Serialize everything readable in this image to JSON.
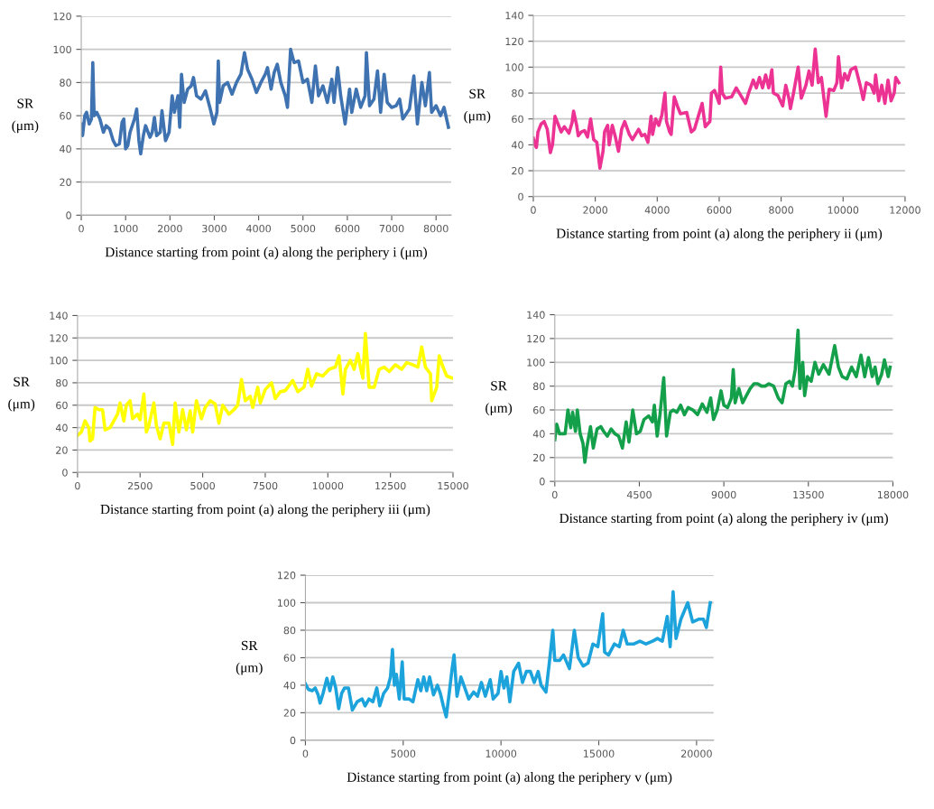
{
  "chart_data": [
    {
      "type": "line",
      "xlabel": "Distance starting from point (a) along the periphery i (μm)",
      "ylabel": "SR\n(μm)",
      "xlim": [
        0,
        8340
      ],
      "xticks": [
        0,
        1000,
        2000,
        3000,
        4000,
        5000,
        6000,
        7000,
        8000
      ],
      "ylim": [
        0,
        120
      ],
      "yticks": [
        0,
        20,
        40,
        60,
        80,
        100,
        120
      ],
      "grid": "y",
      "legend": false,
      "marker": "none",
      "line_style": "solid",
      "series": [
        {
          "color": "#3f72b0",
          "x": [
            0,
            30,
            80,
            120,
            180,
            230,
            260,
            290,
            350,
            420,
            500,
            560,
            640,
            720,
            780,
            860,
            920,
            960,
            1000,
            1050,
            1100,
            1200,
            1250,
            1300,
            1340,
            1400,
            1450,
            1550,
            1600,
            1650,
            1700,
            1780,
            1820,
            1900,
            1980,
            2050,
            2100,
            2180,
            2220,
            2260,
            2320,
            2400,
            2480,
            2530,
            2600,
            2700,
            2800,
            2900,
            2990,
            3060,
            3090,
            3120,
            3200,
            3300,
            3400,
            3500,
            3600,
            3680,
            3750,
            3850,
            3950,
            4050,
            4150,
            4200,
            4280,
            4350,
            4420,
            4500,
            4600,
            4650,
            4720,
            4800,
            4900,
            5000,
            5100,
            5200,
            5280,
            5350,
            5450,
            5550,
            5650,
            5700,
            5780,
            5850,
            5950,
            6050,
            6100,
            6200,
            6300,
            6400,
            6430,
            6500,
            6600,
            6680,
            6750,
            6830,
            6900,
            7000,
            7100,
            7180,
            7250,
            7400,
            7500,
            7580,
            7680,
            7760,
            7850,
            7900,
            8000,
            8100,
            8180,
            8280
          ],
          "values": [
            55,
            48,
            60,
            62,
            55,
            58,
            92,
            60,
            62,
            58,
            50,
            54,
            52,
            45,
            42,
            43,
            56,
            58,
            40,
            42,
            50,
            58,
            64,
            45,
            37,
            48,
            54,
            47,
            50,
            59,
            48,
            50,
            63,
            45,
            50,
            72,
            62,
            72,
            53,
            85,
            68,
            76,
            78,
            83,
            72,
            70,
            75,
            65,
            55,
            62,
            93,
            68,
            78,
            80,
            73,
            80,
            85,
            98,
            88,
            82,
            74,
            80,
            85,
            89,
            76,
            86,
            91,
            80,
            72,
            65,
            100,
            92,
            93,
            80,
            82,
            68,
            90,
            72,
            78,
            68,
            82,
            68,
            89,
            72,
            55,
            76,
            62,
            76,
            65,
            72,
            98,
            66,
            70,
            87,
            62,
            85,
            68,
            65,
            66,
            70,
            58,
            64,
            84,
            55,
            80,
            66,
            86,
            62,
            66,
            60,
            65,
            53
          ]
        }
      ]
    },
    {
      "type": "line",
      "xlabel": "Distance starting from point (a) along the periphery ii (μm)",
      "ylabel": "SR\n(μm)",
      "xlim": [
        0,
        12000
      ],
      "xticks": [
        0,
        2000,
        4000,
        6000,
        8000,
        10000,
        12000
      ],
      "ylim": [
        0,
        140
      ],
      "yticks": [
        0,
        20,
        40,
        60,
        80,
        100,
        120,
        140
      ],
      "grid": "y",
      "legend": false,
      "marker": "none",
      "line_style": "solid",
      "series": [
        {
          "color": "#ec3293",
          "x": [
            0,
            50,
            100,
            150,
            250,
            350,
            450,
            550,
            620,
            700,
            800,
            900,
            1000,
            1150,
            1250,
            1300,
            1400,
            1450,
            1550,
            1650,
            1750,
            1850,
            1950,
            2050,
            2150,
            2250,
            2300,
            2400,
            2450,
            2550,
            2650,
            2750,
            2850,
            2950,
            3100,
            3200,
            3300,
            3400,
            3500,
            3600,
            3700,
            3800,
            3850,
            3950,
            4050,
            4150,
            4250,
            4300,
            4400,
            4450,
            4550,
            4650,
            4750,
            4950,
            5100,
            5200,
            5300,
            5450,
            5550,
            5700,
            5750,
            5850,
            6000,
            6050,
            6100,
            6200,
            6400,
            6550,
            6700,
            6850,
            6950,
            7100,
            7200,
            7300,
            7400,
            7500,
            7600,
            7700,
            7750,
            7900,
            8050,
            8150,
            8250,
            8300,
            8400,
            8550,
            8650,
            8800,
            8900,
            9000,
            9100,
            9200,
            9300,
            9450,
            9550,
            9700,
            9800,
            9850,
            9950,
            10050,
            10150,
            10250,
            10400,
            10550,
            10650,
            10750,
            10900,
            11000,
            11050,
            11150,
            11250,
            11350,
            11450,
            11550,
            11650,
            11700,
            11800
          ],
          "values": [
            45,
            40,
            38,
            50,
            56,
            58,
            52,
            34,
            40,
            62,
            56,
            50,
            54,
            49,
            57,
            66,
            55,
            47,
            50,
            51,
            46,
            60,
            44,
            42,
            22,
            35,
            50,
            55,
            40,
            55,
            46,
            35,
            52,
            58,
            48,
            44,
            48,
            52,
            47,
            48,
            42,
            62,
            48,
            60,
            55,
            63,
            80,
            58,
            50,
            48,
            77,
            70,
            64,
            65,
            50,
            52,
            60,
            72,
            54,
            58,
            80,
            82,
            72,
            100,
            80,
            76,
            77,
            84,
            78,
            72,
            80,
            90,
            84,
            92,
            84,
            94,
            84,
            98,
            80,
            78,
            70,
            86,
            76,
            68,
            80,
            100,
            76,
            86,
            97,
            86,
            114,
            88,
            92,
            62,
            83,
            82,
            88,
            108,
            84,
            95,
            90,
            98,
            100,
            86,
            75,
            88,
            86,
            80,
            94,
            74,
            86,
            72,
            90,
            74,
            80,
            92,
            88
          ]
        }
      ]
    },
    {
      "type": "line",
      "xlabel": "Distance starting from point (a) along the periphery iii (μm)",
      "ylabel": "SR\n(μm)",
      "xlim": [
        0,
        15000
      ],
      "xticks": [
        0,
        2500,
        5000,
        7500,
        10000,
        12500,
        15000
      ],
      "ylim": [
        0,
        140
      ],
      "yticks": [
        0,
        20,
        40,
        60,
        80,
        100,
        120,
        140
      ],
      "grid": "y",
      "legend": false,
      "marker": "none",
      "line_style": "solid",
      "series": [
        {
          "color": "#ffff00",
          "x": [
            0,
            150,
            300,
            450,
            500,
            600,
            700,
            850,
            1000,
            1100,
            1300,
            1500,
            1600,
            1700,
            1850,
            1950,
            2100,
            2200,
            2400,
            2500,
            2650,
            2750,
            2850,
            3050,
            3150,
            3300,
            3450,
            3650,
            3800,
            3900,
            4050,
            4200,
            4350,
            4500,
            4600,
            4750,
            4950,
            5100,
            5300,
            5500,
            5650,
            5800,
            6050,
            6250,
            6400,
            6550,
            6700,
            6900,
            7000,
            7200,
            7300,
            7500,
            7750,
            7900,
            8100,
            8300,
            8600,
            8800,
            9050,
            9200,
            9350,
            9550,
            9800,
            10050,
            10300,
            10450,
            10600,
            10700,
            10900,
            11050,
            11200,
            11300,
            11400,
            11500,
            11650,
            11850,
            12050,
            12250,
            12450,
            12700,
            12950,
            13150,
            13400,
            13600,
            13750,
            13900,
            14100,
            14150,
            14350,
            14450,
            14600,
            14750,
            15000
          ],
          "values": [
            33,
            36,
            46,
            40,
            28,
            30,
            58,
            56,
            56,
            38,
            40,
            48,
            52,
            62,
            46,
            60,
            64,
            48,
            52,
            47,
            70,
            36,
            42,
            62,
            42,
            30,
            44,
            44,
            25,
            62,
            36,
            56,
            38,
            55,
            36,
            64,
            48,
            58,
            64,
            61,
            44,
            60,
            52,
            56,
            60,
            83,
            64,
            68,
            58,
            76,
            62,
            74,
            80,
            66,
            72,
            73,
            82,
            72,
            76,
            92,
            77,
            88,
            86,
            92,
            94,
            104,
            70,
            92,
            100,
            92,
            106,
            94,
            84,
            124,
            76,
            76,
            92,
            94,
            90,
            96,
            92,
            98,
            96,
            94,
            112,
            94,
            88,
            64,
            76,
            104,
            94,
            86,
            84
          ]
        }
      ]
    },
    {
      "type": "line",
      "xlabel": "Distance starting from point (a) along the periphery iv (μm)",
      "ylabel": "SR\n(μm)",
      "xlim": [
        0,
        18000
      ],
      "xticks": [
        0,
        4500,
        9000,
        13500,
        18000
      ],
      "ylim": [
        0,
        140
      ],
      "yticks": [
        0,
        20,
        40,
        60,
        80,
        100,
        120,
        140
      ],
      "grid": "y",
      "legend": false,
      "marker": "none",
      "line_style": "solid",
      "series": [
        {
          "color": "#14a04a",
          "x": [
            0,
            100,
            250,
            550,
            700,
            850,
            950,
            1100,
            1200,
            1350,
            1500,
            1600,
            1700,
            1900,
            2050,
            2250,
            2450,
            2600,
            2800,
            3000,
            3200,
            3400,
            3600,
            3800,
            3950,
            4150,
            4350,
            4550,
            4750,
            5000,
            5200,
            5300,
            5450,
            5600,
            5800,
            5950,
            6150,
            6300,
            6500,
            6700,
            6900,
            7100,
            7350,
            7600,
            7850,
            8100,
            8300,
            8450,
            8650,
            8850,
            9000,
            9200,
            9400,
            9500,
            9600,
            9800,
            10000,
            10200,
            10400,
            10600,
            10800,
            11000,
            11200,
            11400,
            11650,
            11900,
            12100,
            12300,
            12500,
            12650,
            12800,
            12950,
            13050,
            13200,
            13300,
            13450,
            13650,
            13850,
            14050,
            14300,
            14600,
            14900,
            15100,
            15300,
            15550,
            15800,
            16050,
            16300,
            16500,
            16700,
            16900,
            17050,
            17200,
            17400,
            17550,
            17750,
            17850
          ],
          "values": [
            35,
            48,
            40,
            40,
            60,
            45,
            58,
            42,
            60,
            40,
            32,
            16,
            28,
            46,
            28,
            44,
            46,
            42,
            38,
            44,
            40,
            38,
            28,
            50,
            33,
            60,
            40,
            42,
            52,
            55,
            50,
            64,
            38,
            56,
            87,
            38,
            58,
            60,
            58,
            64,
            56,
            62,
            60,
            56,
            65,
            58,
            70,
            52,
            60,
            76,
            64,
            62,
            70,
            94,
            66,
            78,
            66,
            72,
            78,
            82,
            82,
            80,
            80,
            82,
            80,
            70,
            66,
            82,
            84,
            80,
            94,
            127,
            78,
            100,
            72,
            88,
            84,
            100,
            90,
            98,
            90,
            114,
            96,
            88,
            86,
            96,
            88,
            106,
            88,
            104,
            88,
            96,
            82,
            90,
            102,
            88,
            96
          ]
        }
      ]
    },
    {
      "type": "line",
      "xlabel": "Distance starting from point (a) along the periphery v (μm)",
      "ylabel": "SR\n(μm)",
      "xlim": [
        0,
        20870
      ],
      "xticks": [
        0,
        5000,
        10000,
        15000,
        20000
      ],
      "ylim": [
        0,
        120
      ],
      "yticks": [
        0,
        20,
        40,
        60,
        80,
        100,
        120
      ],
      "grid": "y",
      "legend": false,
      "marker": "none",
      "line_style": "solid",
      "series": [
        {
          "color": "#1ca3dc",
          "x": [
            0,
            150,
            350,
            500,
            650,
            750,
            900,
            1100,
            1250,
            1400,
            1550,
            1700,
            1850,
            2000,
            2200,
            2400,
            2650,
            2900,
            3050,
            3250,
            3450,
            3650,
            3800,
            4000,
            4200,
            4350,
            4450,
            4550,
            4650,
            4800,
            4950,
            5050,
            5300,
            5500,
            5750,
            5900,
            6050,
            6200,
            6350,
            6550,
            6750,
            6900,
            7050,
            7200,
            7350,
            7500,
            7600,
            7750,
            7950,
            8150,
            8350,
            8600,
            8800,
            9000,
            9200,
            9450,
            9600,
            9850,
            10000,
            10150,
            10300,
            10450,
            10650,
            10900,
            11100,
            11300,
            11500,
            11700,
            11900,
            12050,
            12300,
            12500,
            12650,
            12750,
            13000,
            13200,
            13500,
            13750,
            13950,
            14200,
            14450,
            14700,
            14950,
            15200,
            15300,
            15500,
            15800,
            16050,
            16250,
            16450,
            16800,
            17100,
            17400,
            17750,
            18000,
            18250,
            18500,
            18650,
            18800,
            18950,
            19200,
            19550,
            19800,
            20100,
            20350,
            20500,
            20700
          ],
          "values": [
            41,
            37,
            36,
            38,
            33,
            27,
            34,
            45,
            36,
            46,
            38,
            23,
            34,
            38,
            38,
            22,
            28,
            30,
            25,
            30,
            28,
            38,
            25,
            34,
            38,
            46,
            66,
            40,
            48,
            30,
            57,
            30,
            30,
            28,
            44,
            36,
            46,
            36,
            46,
            33,
            40,
            34,
            25,
            17,
            34,
            52,
            62,
            32,
            46,
            38,
            30,
            35,
            32,
            42,
            32,
            44,
            30,
            34,
            50,
            38,
            46,
            28,
            50,
            56,
            42,
            50,
            50,
            42,
            50,
            40,
            35,
            60,
            80,
            58,
            58,
            62,
            52,
            80,
            60,
            54,
            56,
            70,
            68,
            92,
            64,
            62,
            70,
            68,
            80,
            70,
            70,
            72,
            70,
            72,
            74,
            72,
            90,
            68,
            108,
            74,
            88,
            100,
            86,
            88,
            88,
            82,
            100
          ]
        }
      ]
    }
  ]
}
